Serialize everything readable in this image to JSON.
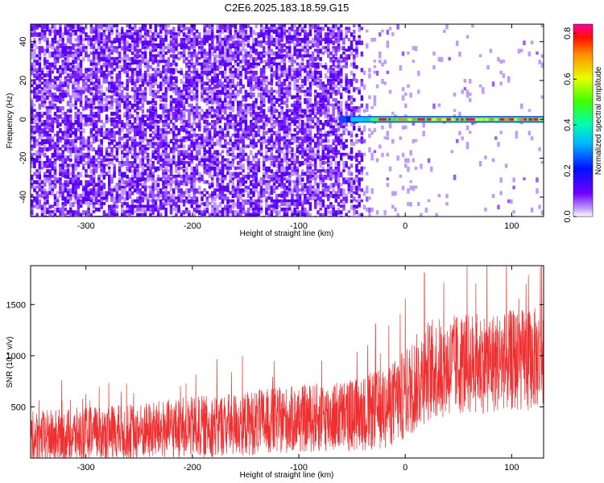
{
  "title": "C2E6.2025.183.18.59.G15",
  "chart_data": [
    {
      "type": "heatmap",
      "xlabel": "Height of straight line (km)",
      "ylabel": "Frequency (Hz)",
      "xlim": [
        -352,
        130
      ],
      "ylim": [
        -50,
        49
      ],
      "xticks": [
        -300,
        -200,
        -100,
        0,
        100
      ],
      "yticks": [
        -40,
        -20,
        0,
        20,
        40
      ],
      "grid": false,
      "colormap": "rainbow (violet to red)",
      "colorbar": {
        "label": "Normalized spectral amplitude",
        "range": [
          0.0,
          0.84
        ],
        "ticks": [
          "0.0",
          "0.2",
          "0.4",
          "0.6",
          "0.8"
        ]
      },
      "description_values": {
        "noise_band_x_range": [
          -352,
          -40
        ],
        "signal_line_frequency": 0,
        "signal_line_x_range": [
          -62,
          130
        ],
        "signal_line_peak_amplitude": 0.8
      }
    },
    {
      "type": "line",
      "xlabel": "Height of straight line (km)",
      "ylabel": "SNR (10 * v/v)",
      "xlim": [
        -352,
        130
      ],
      "ylim": [
        0,
        1880
      ],
      "xticks": [
        -300,
        -200,
        -100,
        0,
        100
      ],
      "yticks": [
        500,
        1000,
        1500
      ],
      "grid": false,
      "color": "#f03030",
      "envelope": {
        "x": [
          -352,
          -300,
          -250,
          -200,
          -150,
          -100,
          -50,
          -20,
          0,
          20,
          50,
          100,
          130
        ],
        "mean": [
          200,
          230,
          260,
          300,
          340,
          380,
          420,
          480,
          620,
          850,
          920,
          950,
          980
        ],
        "amplitude": [
          260,
          270,
          280,
          300,
          320,
          330,
          360,
          400,
          450,
          500,
          500,
          500,
          500
        ]
      },
      "notable_peaks": [
        {
          "x": 18,
          "y": 1810
        },
        {
          "x": 127,
          "y": 1870
        },
        {
          "x": -28,
          "y": 1310
        }
      ]
    }
  ]
}
